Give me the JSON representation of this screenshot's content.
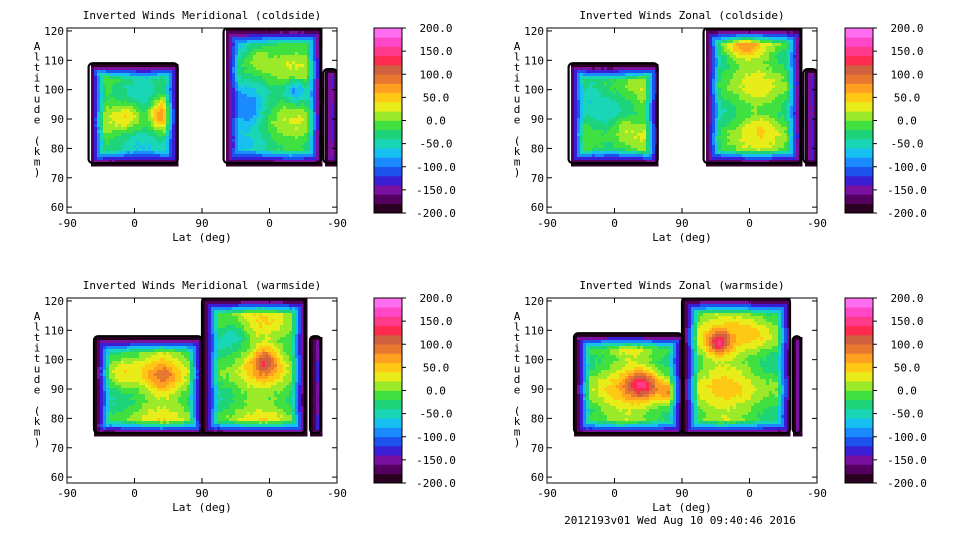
{
  "chart_data": [
    {
      "type": "heatmap",
      "title": "Inverted Winds Meridional (coldside)",
      "xlabel": "Lat (deg)",
      "ylabel": "Altitude (km)",
      "xticks": [
        "-90",
        "0",
        "90",
        "0",
        "-90"
      ],
      "yticks": [
        120,
        110,
        100,
        90,
        80,
        70,
        60
      ],
      "ylim": [
        58,
        121
      ],
      "data_altitude_range": [
        75,
        121
      ],
      "colorbar": {
        "range": [
          -200,
          200
        ],
        "ticks": [
          "200.0",
          "150.0",
          "100.0",
          "50.0",
          "0.0",
          "-50.0",
          "-100.0",
          "-150.0",
          "-200.0"
        ]
      }
    },
    {
      "type": "heatmap",
      "title": "Inverted Winds Zonal (coldside)",
      "xlabel": "Lat (deg)",
      "ylabel": "Altitude (km)",
      "xticks": [
        "-90",
        "0",
        "90",
        "0",
        "-90"
      ],
      "yticks": [
        120,
        110,
        100,
        90,
        80,
        70,
        60
      ],
      "ylim": [
        58,
        121
      ],
      "data_altitude_range": [
        75,
        121
      ],
      "colorbar": {
        "range": [
          -200,
          200
        ],
        "ticks": [
          "200.0",
          "150.0",
          "100.0",
          "50.0",
          "0.0",
          "-50.0",
          "-100.0",
          "-150.0",
          "-200.0"
        ]
      }
    },
    {
      "type": "heatmap",
      "title": "Inverted Winds Meridional (warmside)",
      "xlabel": "Lat (deg)",
      "ylabel": "Altitude (km)",
      "xticks": [
        "-90",
        "0",
        "90",
        "0",
        "-90"
      ],
      "yticks": [
        120,
        110,
        100,
        90,
        80,
        70,
        60
      ],
      "ylim": [
        58,
        121
      ],
      "data_altitude_range": [
        75,
        121
      ],
      "colorbar": {
        "range": [
          -200,
          200
        ],
        "ticks": [
          "200.0",
          "150.0",
          "100.0",
          "50.0",
          "0.0",
          "-50.0",
          "-100.0",
          "-150.0",
          "-200.0"
        ]
      }
    },
    {
      "type": "heatmap",
      "title": "Inverted Winds Zonal (warmside)",
      "xlabel": "Lat (deg)",
      "ylabel": "Altitude (km)",
      "xticks": [
        "-90",
        "0",
        "90",
        "0",
        "-90"
      ],
      "yticks": [
        120,
        110,
        100,
        90,
        80,
        70,
        60
      ],
      "ylim": [
        58,
        121
      ],
      "data_altitude_range": [
        75,
        121
      ],
      "colorbar": {
        "range": [
          -200,
          200
        ],
        "ticks": [
          "200.0",
          "150.0",
          "100.0",
          "50.0",
          "0.0",
          "-50.0",
          "-100.0",
          "-150.0",
          "-200.0"
        ]
      }
    }
  ],
  "colorscale": [
    "#2a0020",
    "#53005e",
    "#7a10a0",
    "#3a1ed6",
    "#1c52ee",
    "#1c8aff",
    "#17c0f0",
    "#19d6b6",
    "#1ed47a",
    "#40e040",
    "#9aea2a",
    "#e8ec18",
    "#ffc814",
    "#ffa020",
    "#e87830",
    "#d06040",
    "#ff2a50",
    "#ff3a8a",
    "#ff48c8",
    "#ff6ef0"
  ],
  "footer": "2012193v01 Wed Aug 10 09:40:46 2016"
}
